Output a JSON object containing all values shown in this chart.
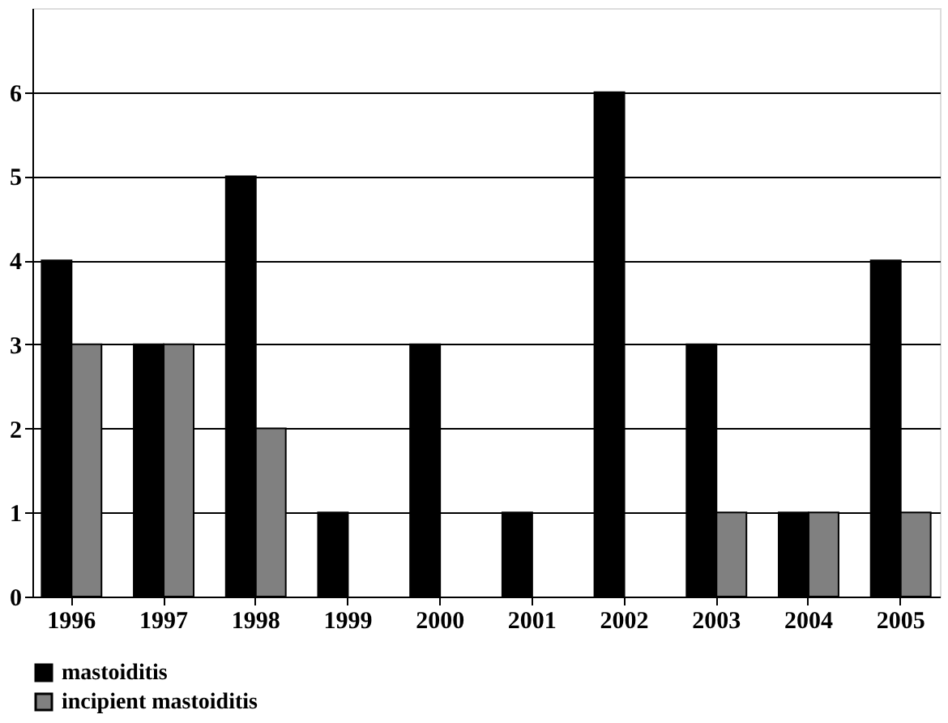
{
  "chart_data": {
    "type": "bar",
    "categories": [
      "1996",
      "1997",
      "1998",
      "1999",
      "2000",
      "2001",
      "2002",
      "2003",
      "2004",
      "2005"
    ],
    "series": [
      {
        "name": "mastoiditis",
        "color": "#000000",
        "values": [
          4,
          3,
          5,
          1,
          3,
          1,
          6,
          3,
          1,
          4
        ]
      },
      {
        "name": "incipient mastoiditis",
        "color": "#808080",
        "values": [
          3,
          3,
          2,
          null,
          null,
          null,
          null,
          1,
          1,
          1
        ]
      }
    ],
    "ylim": [
      0,
      7
    ],
    "yticks": [
      0,
      1,
      2,
      3,
      4,
      5,
      6
    ],
    "grid": "y",
    "legend": "bottom"
  }
}
